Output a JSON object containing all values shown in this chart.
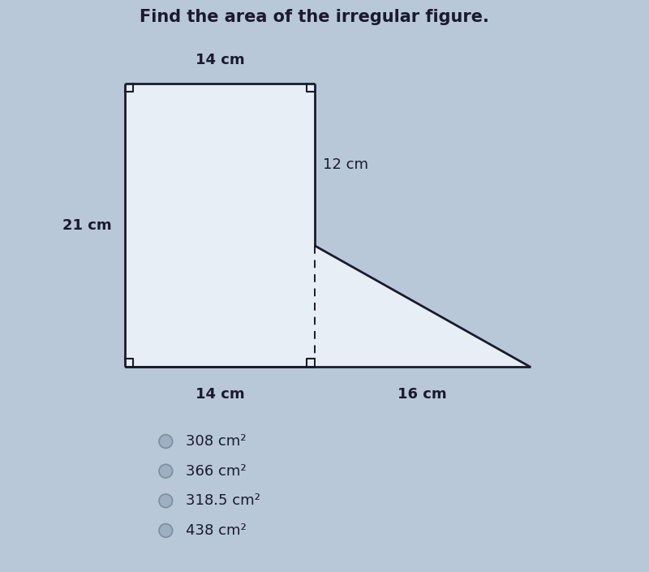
{
  "title": "Find the area of the irregular figure.",
  "title_fontsize": 15,
  "title_fontweight": "bold",
  "bg_color": "#b8c8d8",
  "fig_bg_color": "#dde8f0",
  "shape_fill": "#e8eef5",
  "shape_linewidth": 2.0,
  "shape_line_color": "#1a1a2e",
  "label_top": "14 cm",
  "label_left": "21 cm",
  "label_right": "12 cm",
  "label_bottom_left": "14 cm",
  "label_bottom_right": "16 cm",
  "choices": [
    "308 cm²",
    "366 cm²",
    "318.5 cm²",
    "438 cm²"
  ],
  "choice_fontsize": 13,
  "label_fontsize": 13,
  "label_fontweight": "bold",
  "ra_size": 0.6
}
